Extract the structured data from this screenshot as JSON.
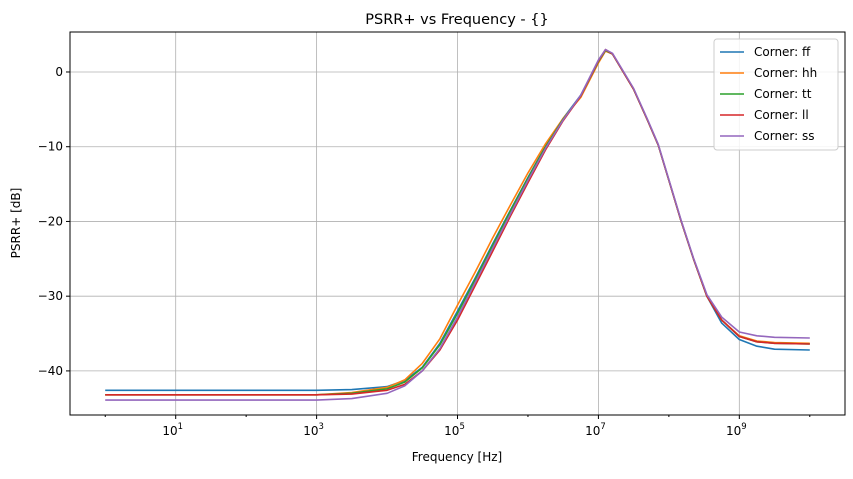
{
  "chart_data": {
    "type": "line",
    "title": "PSRR+ vs Frequency - {}",
    "xlabel": "Frequency [Hz]",
    "ylabel": "PSRR+ [dB]",
    "xscale": "log",
    "xlim": [
      0.316,
      31622776601
    ],
    "ylim": [
      -45.9,
      5.35
    ],
    "xticks": [
      {
        "value": 10,
        "base": "10",
        "exp": "1"
      },
      {
        "value": 1000,
        "base": "10",
        "exp": "3"
      },
      {
        "value": 100000,
        "base": "10",
        "exp": "5"
      },
      {
        "value": 10000000,
        "base": "10",
        "exp": "7"
      },
      {
        "value": 1000000000,
        "base": "10",
        "exp": "9"
      }
    ],
    "yticks": [
      0,
      -10,
      -20,
      -30,
      -40
    ],
    "ytick_labels": [
      "0",
      "−10",
      "−20",
      "−30",
      "−40"
    ],
    "grid": true,
    "legend_position": "top-right",
    "x": [
      1,
      10,
      100,
      1000,
      3162,
      10000,
      17783,
      31623,
      56234,
      100000,
      177828,
      316228,
      562341,
      1000000,
      1778279,
      3162278,
      5623413,
      10000000,
      12589254,
      15848932,
      31622777,
      50118723,
      70794578,
      100000000,
      147910839,
      223872114,
      346736850,
      562341325,
      1000000000,
      1778279410,
      3162277660,
      10000000000
    ],
    "series": [
      {
        "name": "Corner: ff",
        "color": "#1f77b4",
        "values": [
          -42.6,
          -42.6,
          -42.6,
          -42.6,
          -42.5,
          -42.1,
          -41.3,
          -39.5,
          -36.3,
          -32.0,
          -27.6,
          -23.0,
          -18.5,
          -14.1,
          -9.9,
          -6.2,
          -3.1,
          1.4,
          2.9,
          2.4,
          -2.3,
          -6.5,
          -9.8,
          -14.5,
          -19.8,
          -25.0,
          -30.0,
          -33.6,
          -35.8,
          -36.7,
          -37.1,
          -37.2
        ]
      },
      {
        "name": "Corner: hh",
        "color": "#ff7f0e",
        "values": [
          -43.2,
          -43.2,
          -43.2,
          -43.2,
          -42.9,
          -42.2,
          -41.2,
          -39.0,
          -35.7,
          -31.2,
          -26.8,
          -22.2,
          -17.8,
          -13.5,
          -9.6,
          -6.2,
          -3.4,
          1.2,
          2.8,
          2.4,
          -2.3,
          -6.5,
          -9.8,
          -14.5,
          -19.8,
          -25.0,
          -30.0,
          -33.2,
          -35.3,
          -36.0,
          -36.2,
          -36.3
        ]
      },
      {
        "name": "Corner: tt",
        "color": "#2ca02c",
        "values": [
          -43.2,
          -43.2,
          -43.2,
          -43.2,
          -43.0,
          -42.4,
          -41.5,
          -39.6,
          -36.5,
          -32.3,
          -27.8,
          -23.2,
          -18.6,
          -14.2,
          -10.0,
          -6.3,
          -3.2,
          1.4,
          2.9,
          2.4,
          -2.3,
          -6.5,
          -9.8,
          -14.5,
          -19.8,
          -25.0,
          -30.0,
          -33.2,
          -35.4,
          -36.1,
          -36.3,
          -36.4
        ]
      },
      {
        "name": "Corner: ll",
        "color": "#d62728",
        "values": [
          -43.2,
          -43.2,
          -43.2,
          -43.2,
          -43.1,
          -42.6,
          -41.8,
          -40.0,
          -37.2,
          -33.2,
          -28.6,
          -24.0,
          -19.3,
          -14.8,
          -10.4,
          -6.5,
          -3.2,
          1.5,
          3.0,
          2.4,
          -2.3,
          -6.5,
          -9.8,
          -14.5,
          -19.8,
          -25.0,
          -30.0,
          -33.2,
          -35.4,
          -36.1,
          -36.3,
          -36.4
        ]
      },
      {
        "name": "Corner: ss",
        "color": "#9467bd",
        "values": [
          -43.9,
          -43.9,
          -43.9,
          -43.9,
          -43.7,
          -43.0,
          -42.0,
          -40.0,
          -37.0,
          -32.8,
          -28.2,
          -23.6,
          -19.0,
          -14.5,
          -10.2,
          -6.4,
          -3.1,
          1.6,
          3.0,
          2.5,
          -2.2,
          -6.4,
          -9.7,
          -14.4,
          -19.7,
          -24.9,
          -29.8,
          -32.8,
          -34.8,
          -35.3,
          -35.5,
          -35.6
        ]
      }
    ]
  }
}
